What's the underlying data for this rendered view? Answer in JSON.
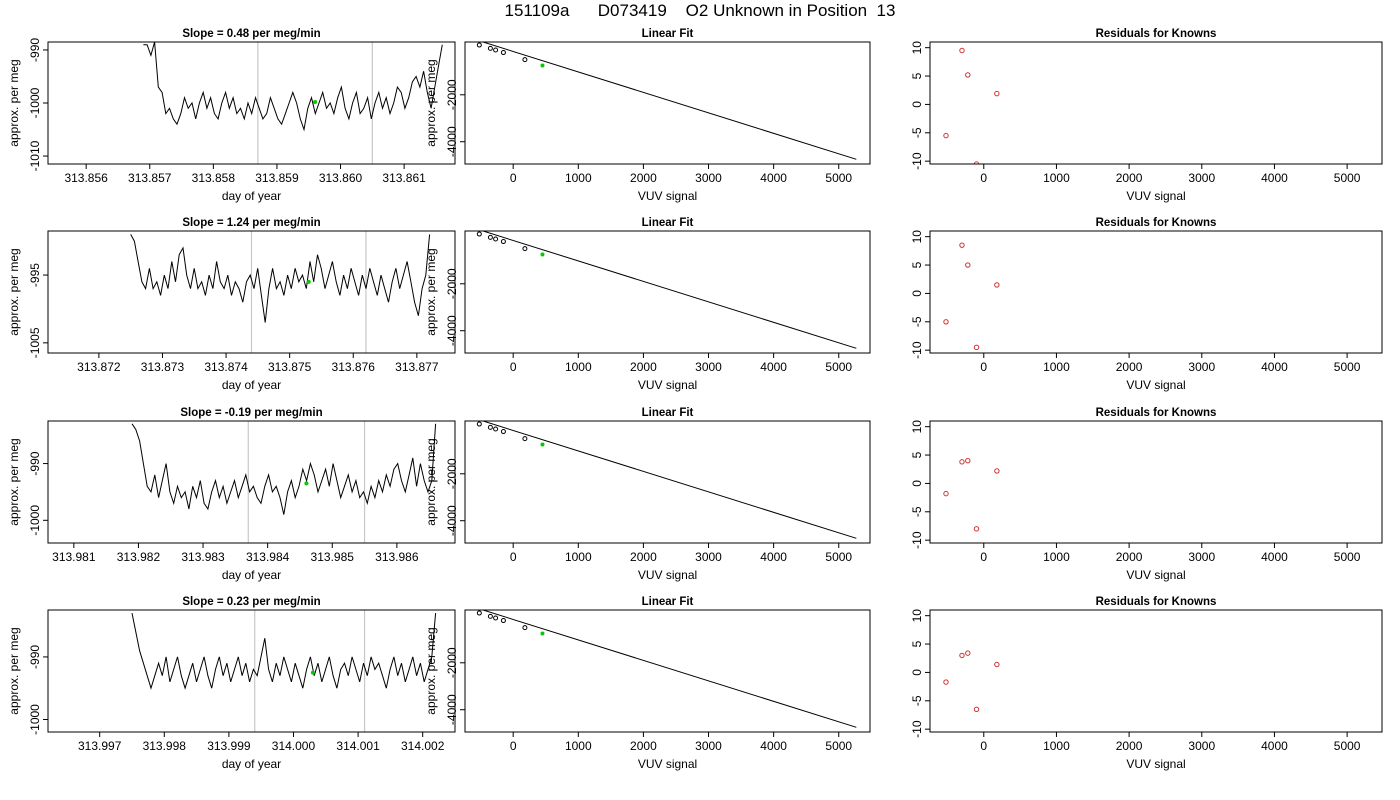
{
  "page": {
    "title": "151109a      D073419    O2 Unknown in Position  13"
  },
  "colors": {
    "axis": "#000000",
    "line": "#000000",
    "unknown_marker": "#00cc00",
    "residual_marker": "#cc3333",
    "vertical_marker": "#c8c8c8"
  },
  "chart_data": [
    {
      "type": "line",
      "panel": "time-series",
      "row": 1,
      "title": "Slope =  0.48  per meg/min",
      "xlabel": "day of year",
      "ylabel": "approx. per meg",
      "xlim": [
        313.8554,
        313.8618
      ],
      "ylim": [
        -1011.5,
        -988.5
      ],
      "xticks": [
        313.856,
        313.857,
        313.858,
        313.859,
        313.86,
        313.861
      ],
      "xtick_labels": [
        "313.856",
        "313.857",
        "313.858",
        "313.859",
        "313.860",
        "313.861"
      ],
      "yticks": [
        -1010,
        -1000,
        -990
      ],
      "ytick_labels": [
        "-1010",
        "-1000",
        "-990"
      ],
      "vlines": [
        313.8587,
        313.8605
      ],
      "marker": {
        "x": 313.8596,
        "y": -999.8
      },
      "trace_x_start": 313.8569,
      "trace_x_end": 313.8616,
      "trace": [
        -989,
        -989,
        -991,
        -988.5,
        -997,
        -998,
        -1002,
        -1001,
        -1003,
        -1004,
        -1002,
        -999,
        -1001,
        -1000,
        -1003,
        -1000,
        -998,
        -1001,
        -999,
        -1002,
        -1003,
        -1000,
        -998,
        -1001,
        -999,
        -1002,
        -1001,
        -1003,
        -1000,
        -1002,
        -999,
        -1001,
        -1003,
        -1002,
        -999,
        -1001,
        -1003,
        -1004,
        -1002,
        -1000,
        -998,
        -1000,
        -1003,
        -1005,
        -1001,
        -999,
        -1002,
        -1000,
        -998,
        -1001,
        -1000,
        -1002,
        -999,
        -997,
        -1001,
        -1003,
        -1000,
        -998,
        -1002,
        -1001,
        -999,
        -1003,
        -1000,
        -998,
        -1001,
        -999,
        -1002,
        -1000,
        -997,
        -998,
        -1001,
        -999,
        -996,
        -995,
        -997,
        -994,
        -998,
        -1001,
        -997,
        -993,
        -989
      ]
    },
    {
      "type": "line",
      "panel": "linear-fit",
      "row": 1,
      "title": "Linear Fit",
      "xlabel": "VUV signal",
      "ylabel": "approx. per meg",
      "xlim": [
        -740,
        5480
      ],
      "ylim": [
        -4950,
        250
      ],
      "xticks": [
        0,
        1000,
        2000,
        3000,
        4000,
        5000
      ],
      "xtick_labels": [
        "0",
        "1000",
        "2000",
        "3000",
        "4000",
        "5000"
      ],
      "yticks": [
        -4000,
        -2000
      ],
      "ytick_labels": [
        "-4000",
        "-2000"
      ],
      "fit_line": {
        "x": [
          -520,
          5270
        ],
        "y": [
          300,
          -4750
        ]
      },
      "knowns": [
        [
          -520,
          120
        ],
        [
          -350,
          -20
        ],
        [
          -270,
          -90
        ],
        [
          -150,
          -200
        ],
        [
          180,
          -500
        ]
      ],
      "unknown": [
        450,
        -750
      ]
    },
    {
      "type": "scatter",
      "panel": "residuals",
      "row": 1,
      "title": "Residuals for Knowns",
      "xlabel": "VUV signal",
      "ylabel": "",
      "xlim": [
        -740,
        5480
      ],
      "ylim": [
        -10.5,
        11
      ],
      "xticks": [
        0,
        1000,
        2000,
        3000,
        4000,
        5000
      ],
      "xtick_labels": [
        "0",
        "1000",
        "2000",
        "3000",
        "4000",
        "5000"
      ],
      "yticks": [
        -10,
        -5,
        0,
        5,
        10
      ],
      "ytick_labels": [
        "-10",
        "-5",
        "0",
        "5",
        "10"
      ],
      "points": [
        [
          -520,
          -5.5
        ],
        [
          -300,
          9.5
        ],
        [
          -220,
          5.2
        ],
        [
          -100,
          -10.5
        ],
        [
          180,
          1.9
        ]
      ]
    },
    {
      "type": "line",
      "panel": "time-series",
      "row": 2,
      "title": "Slope =  1.24  per meg/min",
      "xlabel": "day of year",
      "ylabel": "approx. per meg",
      "xlim": [
        313.8712,
        313.8776
      ],
      "ylim": [
        -1006.5,
        -988.5
      ],
      "xticks": [
        313.872,
        313.873,
        313.874,
        313.875,
        313.876,
        313.877
      ],
      "xtick_labels": [
        "313.872",
        "313.873",
        "313.874",
        "313.875",
        "313.876",
        "313.877"
      ],
      "yticks": [
        -1005,
        -995
      ],
      "ytick_labels": [
        "-1005",
        "-995"
      ],
      "vlines": [
        313.8744,
        313.8762
      ],
      "marker": {
        "x": 313.8753,
        "y": -996
      },
      "trace_x_start": 313.8725,
      "trace_x_end": 313.8772,
      "trace": [
        -989,
        -990,
        -993,
        -996,
        -997,
        -994,
        -997,
        -996,
        -998,
        -995,
        -997,
        -993,
        -996,
        -992,
        -991,
        -995,
        -997,
        -994,
        -997,
        -996,
        -998,
        -995,
        -997,
        -993,
        -996,
        -997,
        -995,
        -998,
        -996,
        -997,
        -999,
        -996,
        -995,
        -997,
        -994,
        -998,
        -1002,
        -997,
        -994,
        -997,
        -996,
        -998,
        -995,
        -997,
        -994,
        -996,
        -995,
        -997,
        -993,
        -996,
        -992,
        -994,
        -997,
        -995,
        -993,
        -996,
        -998,
        -995,
        -997,
        -994,
        -996,
        -998,
        -995,
        -997,
        -994,
        -996,
        -998,
        -995,
        -997,
        -999,
        -996,
        -994,
        -997,
        -995,
        -993,
        -996,
        -999,
        -1001,
        -997,
        -995,
        -989
      ]
    },
    {
      "type": "line",
      "panel": "linear-fit",
      "row": 2,
      "title": "Linear Fit",
      "xlabel": "VUV signal",
      "ylabel": "approx. per meg",
      "xlim": [
        -740,
        5480
      ],
      "ylim": [
        -4950,
        250
      ],
      "xticks": [
        0,
        1000,
        2000,
        3000,
        4000,
        5000
      ],
      "xtick_labels": [
        "0",
        "1000",
        "2000",
        "3000",
        "4000",
        "5000"
      ],
      "yticks": [
        -4000,
        -2000
      ],
      "ytick_labels": [
        "-4000",
        "-2000"
      ],
      "fit_line": {
        "x": [
          -520,
          5270
        ],
        "y": [
          300,
          -4750
        ]
      },
      "knowns": [
        [
          -520,
          120
        ],
        [
          -350,
          -20
        ],
        [
          -270,
          -90
        ],
        [
          -150,
          -200
        ],
        [
          180,
          -500
        ]
      ],
      "unknown": [
        450,
        -750
      ]
    },
    {
      "type": "scatter",
      "panel": "residuals",
      "row": 2,
      "title": "Residuals for Knowns",
      "xlabel": "VUV signal",
      "ylabel": "",
      "xlim": [
        -740,
        5480
      ],
      "ylim": [
        -10.5,
        11
      ],
      "xticks": [
        0,
        1000,
        2000,
        3000,
        4000,
        5000
      ],
      "xtick_labels": [
        "0",
        "1000",
        "2000",
        "3000",
        "4000",
        "5000"
      ],
      "yticks": [
        -10,
        -5,
        0,
        5,
        10
      ],
      "ytick_labels": [
        "-10",
        "-5",
        "0",
        "5",
        "10"
      ],
      "points": [
        [
          -520,
          -5
        ],
        [
          -300,
          8.5
        ],
        [
          -220,
          5
        ],
        [
          -100,
          -9.5
        ],
        [
          180,
          1.5
        ]
      ]
    },
    {
      "type": "line",
      "panel": "time-series",
      "row": 3,
      "title": "Slope =  -0.19  per meg/min",
      "xlabel": "day of year",
      "ylabel": "approx. per meg",
      "xlim": [
        313.9806,
        313.9869
      ],
      "ylim": [
        -1004,
        -982.5
      ],
      "xticks": [
        313.981,
        313.982,
        313.983,
        313.984,
        313.985,
        313.986
      ],
      "xtick_labels": [
        "313.981",
        "313.982",
        "313.983",
        "313.984",
        "313.985",
        "313.986"
      ],
      "yticks": [
        -1000,
        -990
      ],
      "ytick_labels": [
        "-1000",
        "-990"
      ],
      "vlines": [
        313.9837,
        313.9855
      ],
      "marker": {
        "x": 313.9846,
        "y": -993.5
      },
      "trace_x_start": 313.9819,
      "trace_x_end": 313.9866,
      "trace": [
        -983,
        -984,
        -986,
        -990,
        -994,
        -995,
        -992,
        -996,
        -993,
        -990,
        -995,
        -997,
        -994,
        -996,
        -995,
        -998,
        -994,
        -996,
        -993,
        -997,
        -998,
        -995,
        -993,
        -996,
        -994,
        -997,
        -995,
        -993,
        -996,
        -994,
        -992,
        -995,
        -994,
        -996,
        -997,
        -994,
        -992,
        -995,
        -994,
        -996,
        -999,
        -995,
        -993,
        -996,
        -994,
        -991,
        -993,
        -990,
        -992,
        -995,
        -993,
        -991,
        -994,
        -990,
        -993,
        -996,
        -994,
        -992,
        -995,
        -993,
        -996,
        -995,
        -997,
        -994,
        -996,
        -993,
        -995,
        -992,
        -994,
        -991,
        -990,
        -993,
        -995,
        -992,
        -989,
        -994,
        -990,
        -993,
        -995,
        -993,
        -983
      ]
    },
    {
      "type": "line",
      "panel": "linear-fit",
      "row": 3,
      "title": "Linear Fit",
      "xlabel": "VUV signal",
      "ylabel": "approx. per meg",
      "xlim": [
        -740,
        5480
      ],
      "ylim": [
        -4950,
        250
      ],
      "xticks": [
        0,
        1000,
        2000,
        3000,
        4000,
        5000
      ],
      "xtick_labels": [
        "0",
        "1000",
        "2000",
        "3000",
        "4000",
        "5000"
      ],
      "yticks": [
        -4000,
        -2000
      ],
      "ytick_labels": [
        "-4000",
        "-2000"
      ],
      "fit_line": {
        "x": [
          -520,
          5270
        ],
        "y": [
          300,
          -4750
        ]
      },
      "knowns": [
        [
          -520,
          120
        ],
        [
          -350,
          -20
        ],
        [
          -270,
          -90
        ],
        [
          -150,
          -200
        ],
        [
          180,
          -500
        ]
      ],
      "unknown": [
        450,
        -750
      ]
    },
    {
      "type": "scatter",
      "panel": "residuals",
      "row": 3,
      "title": "Residuals for Knowns",
      "xlabel": "VUV signal",
      "ylabel": "",
      "xlim": [
        -740,
        5480
      ],
      "ylim": [
        -10.5,
        11
      ],
      "xticks": [
        0,
        1000,
        2000,
        3000,
        4000,
        5000
      ],
      "xtick_labels": [
        "0",
        "1000",
        "2000",
        "3000",
        "4000",
        "5000"
      ],
      "yticks": [
        -10,
        -5,
        0,
        5,
        10
      ],
      "ytick_labels": [
        "-10",
        "-5",
        "0",
        "5",
        "10"
      ],
      "points": [
        [
          -520,
          -1.8
        ],
        [
          -300,
          3.8
        ],
        [
          -220,
          4
        ],
        [
          -100,
          -8
        ],
        [
          180,
          2.2
        ]
      ]
    },
    {
      "type": "line",
      "panel": "time-series",
      "row": 4,
      "title": "Slope =  0.23  per meg/min",
      "xlabel": "day of year",
      "ylabel": "approx. per meg",
      "xlim": [
        313.9962,
        314.0025
      ],
      "ylim": [
        -1002,
        -982.5
      ],
      "xticks": [
        313.997,
        313.998,
        313.999,
        314.0,
        314.001,
        314.002
      ],
      "xtick_labels": [
        "313.997",
        "313.998",
        "313.999",
        "314.000",
        "314.001",
        "314.002"
      ],
      "yticks": [
        -1000,
        -990
      ],
      "ytick_labels": [
        "-1000",
        "-990"
      ],
      "vlines": [
        313.9994,
        314.0011
      ],
      "marker": {
        "x": 314.0003,
        "y": -992.5
      },
      "trace_x_start": 313.9975,
      "trace_x_end": 314.0022,
      "trace": [
        -983,
        -986,
        -989,
        -991,
        -993,
        -995,
        -993,
        -991,
        -993,
        -990,
        -994,
        -992,
        -990,
        -993,
        -995,
        -993,
        -991,
        -994,
        -992,
        -990,
        -993,
        -995,
        -992,
        -990,
        -993,
        -991,
        -994,
        -992,
        -990,
        -993,
        -991,
        -994,
        -992,
        -993,
        -990,
        -987,
        -992,
        -994,
        -991,
        -993,
        -990,
        -992,
        -994,
        -991,
        -993,
        -995,
        -992,
        -990,
        -993,
        -991,
        -994,
        -992,
        -990,
        -993,
        -995,
        -992,
        -991,
        -993,
        -990,
        -992,
        -994,
        -991,
        -993,
        -990,
        -992,
        -991,
        -993,
        -995,
        -992,
        -990,
        -993,
        -991,
        -994,
        -992,
        -990,
        -993,
        -991,
        -994,
        -992,
        -990,
        -983
      ]
    },
    {
      "type": "line",
      "panel": "linear-fit",
      "row": 4,
      "title": "Linear Fit",
      "xlabel": "VUV signal",
      "ylabel": "approx. per meg",
      "xlim": [
        -740,
        5480
      ],
      "ylim": [
        -4950,
        250
      ],
      "xticks": [
        0,
        1000,
        2000,
        3000,
        4000,
        5000
      ],
      "xtick_labels": [
        "0",
        "1000",
        "2000",
        "3000",
        "4000",
        "5000"
      ],
      "yticks": [
        -4000,
        -2000
      ],
      "ytick_labels": [
        "-4000",
        "-2000"
      ],
      "fit_line": {
        "x": [
          -520,
          5270
        ],
        "y": [
          300,
          -4750
        ]
      },
      "knowns": [
        [
          -520,
          120
        ],
        [
          -350,
          -20
        ],
        [
          -270,
          -90
        ],
        [
          -150,
          -200
        ],
        [
          180,
          -500
        ]
      ],
      "unknown": [
        450,
        -750
      ]
    },
    {
      "type": "scatter",
      "panel": "residuals",
      "row": 4,
      "title": "Residuals for Knowns",
      "xlabel": "VUV signal",
      "ylabel": "",
      "xlim": [
        -740,
        5480
      ],
      "ylim": [
        -10.5,
        11
      ],
      "xticks": [
        0,
        1000,
        2000,
        3000,
        4000,
        5000
      ],
      "xtick_labels": [
        "0",
        "1000",
        "2000",
        "3000",
        "4000",
        "5000"
      ],
      "yticks": [
        -10,
        -5,
        0,
        5,
        10
      ],
      "ytick_labels": [
        "-10",
        "-5",
        "0",
        "5",
        "10"
      ],
      "points": [
        [
          -520,
          -1.7
        ],
        [
          -300,
          3
        ],
        [
          -220,
          3.4
        ],
        [
          -100,
          -6.5
        ],
        [
          180,
          1.4
        ]
      ]
    }
  ]
}
